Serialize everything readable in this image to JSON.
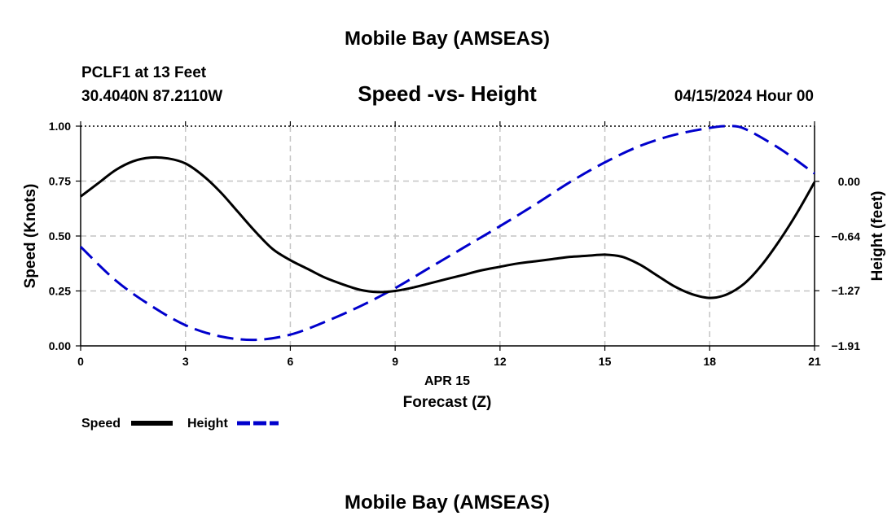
{
  "header": {
    "title": "Mobile Bay (AMSEAS)",
    "station": "PCLF1 at 13 Feet",
    "coords": "30.4040N  87.2110W",
    "subtitle": "Speed -vs- Height",
    "datetime": "04/15/2024 Hour 00"
  },
  "footer": {
    "title": "Mobile Bay (AMSEAS)"
  },
  "colors": {
    "speed": "#000000",
    "height": "#0000cc",
    "grid": "#c4c4c4"
  },
  "chart_data": {
    "type": "line",
    "title": "Speed -vs- Height",
    "xlabel": "Forecast (Z)",
    "xdate": "APR 15",
    "ylabel": "Speed (Knots)",
    "y2label": "Height (feet)",
    "xlim": [
      0,
      21
    ],
    "ylim": [
      0,
      1
    ],
    "y2lim": [
      -1.91,
      0.64
    ],
    "xticks": [
      "0",
      "3",
      "6",
      "9",
      "12",
      "15",
      "18",
      "21"
    ],
    "yticks": [
      "0.00",
      "0.25",
      "0.50",
      "0.75",
      "1.00"
    ],
    "y2ticks": [
      {
        "label": "−1.91",
        "value": -1.91
      },
      {
        "label": "−1.27",
        "value": -1.27
      },
      {
        "label": "−0.64",
        "value": -0.64
      },
      {
        "label": "0.00",
        "value": 0.0
      }
    ],
    "legend": {
      "position": "bottom-left"
    },
    "series": [
      {
        "name": "Speed",
        "axis": "left",
        "style": "solid",
        "x": [
          0,
          0.5,
          1,
          1.5,
          2,
          2.5,
          3,
          3.5,
          4,
          4.5,
          5,
          5.5,
          6,
          6.5,
          7,
          7.5,
          8,
          8.5,
          9,
          9.5,
          10,
          10.5,
          11,
          11.5,
          12,
          12.5,
          13,
          13.5,
          14,
          14.5,
          15,
          15.5,
          16,
          16.5,
          17,
          17.5,
          18,
          18.5,
          19,
          19.5,
          20,
          20.5,
          21
        ],
        "values": [
          0.68,
          0.74,
          0.8,
          0.84,
          0.857,
          0.853,
          0.83,
          0.775,
          0.7,
          0.61,
          0.52,
          0.44,
          0.39,
          0.35,
          0.31,
          0.28,
          0.255,
          0.245,
          0.25,
          0.265,
          0.285,
          0.305,
          0.325,
          0.345,
          0.36,
          0.375,
          0.385,
          0.395,
          0.405,
          0.41,
          0.415,
          0.405,
          0.37,
          0.32,
          0.27,
          0.235,
          0.218,
          0.235,
          0.285,
          0.37,
          0.48,
          0.605,
          0.745
        ]
      },
      {
        "name": "Height",
        "axis": "right",
        "style": "dashed",
        "x": [
          0,
          1,
          2,
          3,
          4,
          5,
          6,
          7,
          8,
          9,
          10,
          11,
          12,
          13,
          14,
          15,
          16,
          17,
          18,
          18.5,
          19,
          20,
          21
        ],
        "values": [
          -0.76,
          -1.15,
          -1.44,
          -1.67,
          -1.8,
          -1.84,
          -1.78,
          -1.63,
          -1.45,
          -1.24,
          -1.0,
          -0.76,
          -0.52,
          -0.27,
          -0.01,
          0.22,
          0.41,
          0.54,
          0.62,
          0.64,
          0.61,
          0.38,
          0.09
        ]
      }
    ]
  }
}
